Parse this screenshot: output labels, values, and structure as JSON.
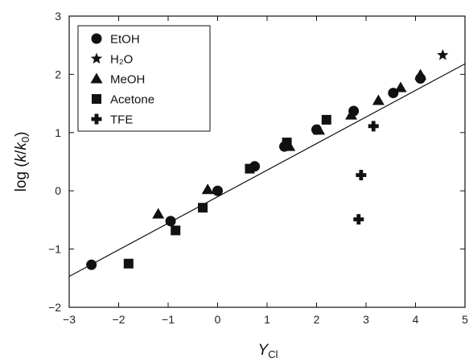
{
  "chart_data": {
    "type": "scatter",
    "title": "",
    "xlabel": {
      "main": "Y",
      "sub": "Cl"
    },
    "ylabel": {
      "prefix": "log (",
      "k": "k",
      "slash": "/",
      "k0": "k",
      "zero": "0",
      "suffix": ")"
    },
    "xlim": [
      -3,
      5
    ],
    "ylim": [
      -2,
      3
    ],
    "xticks": [
      -3,
      -2,
      -1,
      0,
      1,
      2,
      3,
      4,
      5
    ],
    "yticks": [
      -2,
      -1,
      0,
      1,
      2,
      3
    ],
    "xtick_labels": [
      "−3",
      "−2",
      "−1",
      "0",
      "1",
      "2",
      "3",
      "4",
      "5"
    ],
    "ytick_labels": [
      "−2",
      "−1",
      "0",
      "1",
      "2",
      "3"
    ],
    "legend_position": "top-left",
    "fit_line": {
      "x": [
        -3,
        5
      ],
      "y": [
        -1.47,
        2.18
      ]
    },
    "series": [
      {
        "name": "EtOH",
        "marker": "circle",
        "points": [
          [
            -2.55,
            -1.27
          ],
          [
            -0.95,
            -0.52
          ],
          [
            0.0,
            0.0
          ],
          [
            0.75,
            0.42
          ],
          [
            1.35,
            0.76
          ],
          [
            2.0,
            1.05
          ],
          [
            2.75,
            1.37
          ],
          [
            3.55,
            1.68
          ],
          [
            4.1,
            1.93
          ]
        ]
      },
      {
        "name": "H₂O",
        "marker": "star",
        "points": [
          [
            4.55,
            2.33
          ]
        ]
      },
      {
        "name": "MeOH",
        "marker": "triangle",
        "points": [
          [
            -1.2,
            -0.4
          ],
          [
            -0.2,
            0.02
          ],
          [
            1.45,
            0.76
          ],
          [
            2.05,
            1.04
          ],
          [
            2.7,
            1.3
          ],
          [
            3.25,
            1.55
          ],
          [
            3.7,
            1.77
          ],
          [
            4.1,
            1.99
          ]
        ]
      },
      {
        "name": "Acetone",
        "marker": "square",
        "points": [
          [
            -1.8,
            -1.25
          ],
          [
            -0.85,
            -0.68
          ],
          [
            -0.3,
            -0.29
          ],
          [
            0.65,
            0.38
          ],
          [
            1.4,
            0.83
          ],
          [
            2.2,
            1.22
          ]
        ]
      },
      {
        "name": "TFE",
        "marker": "cross",
        "points": [
          [
            2.85,
            -0.49
          ],
          [
            2.9,
            0.27
          ],
          [
            3.15,
            1.11
          ]
        ]
      }
    ]
  }
}
